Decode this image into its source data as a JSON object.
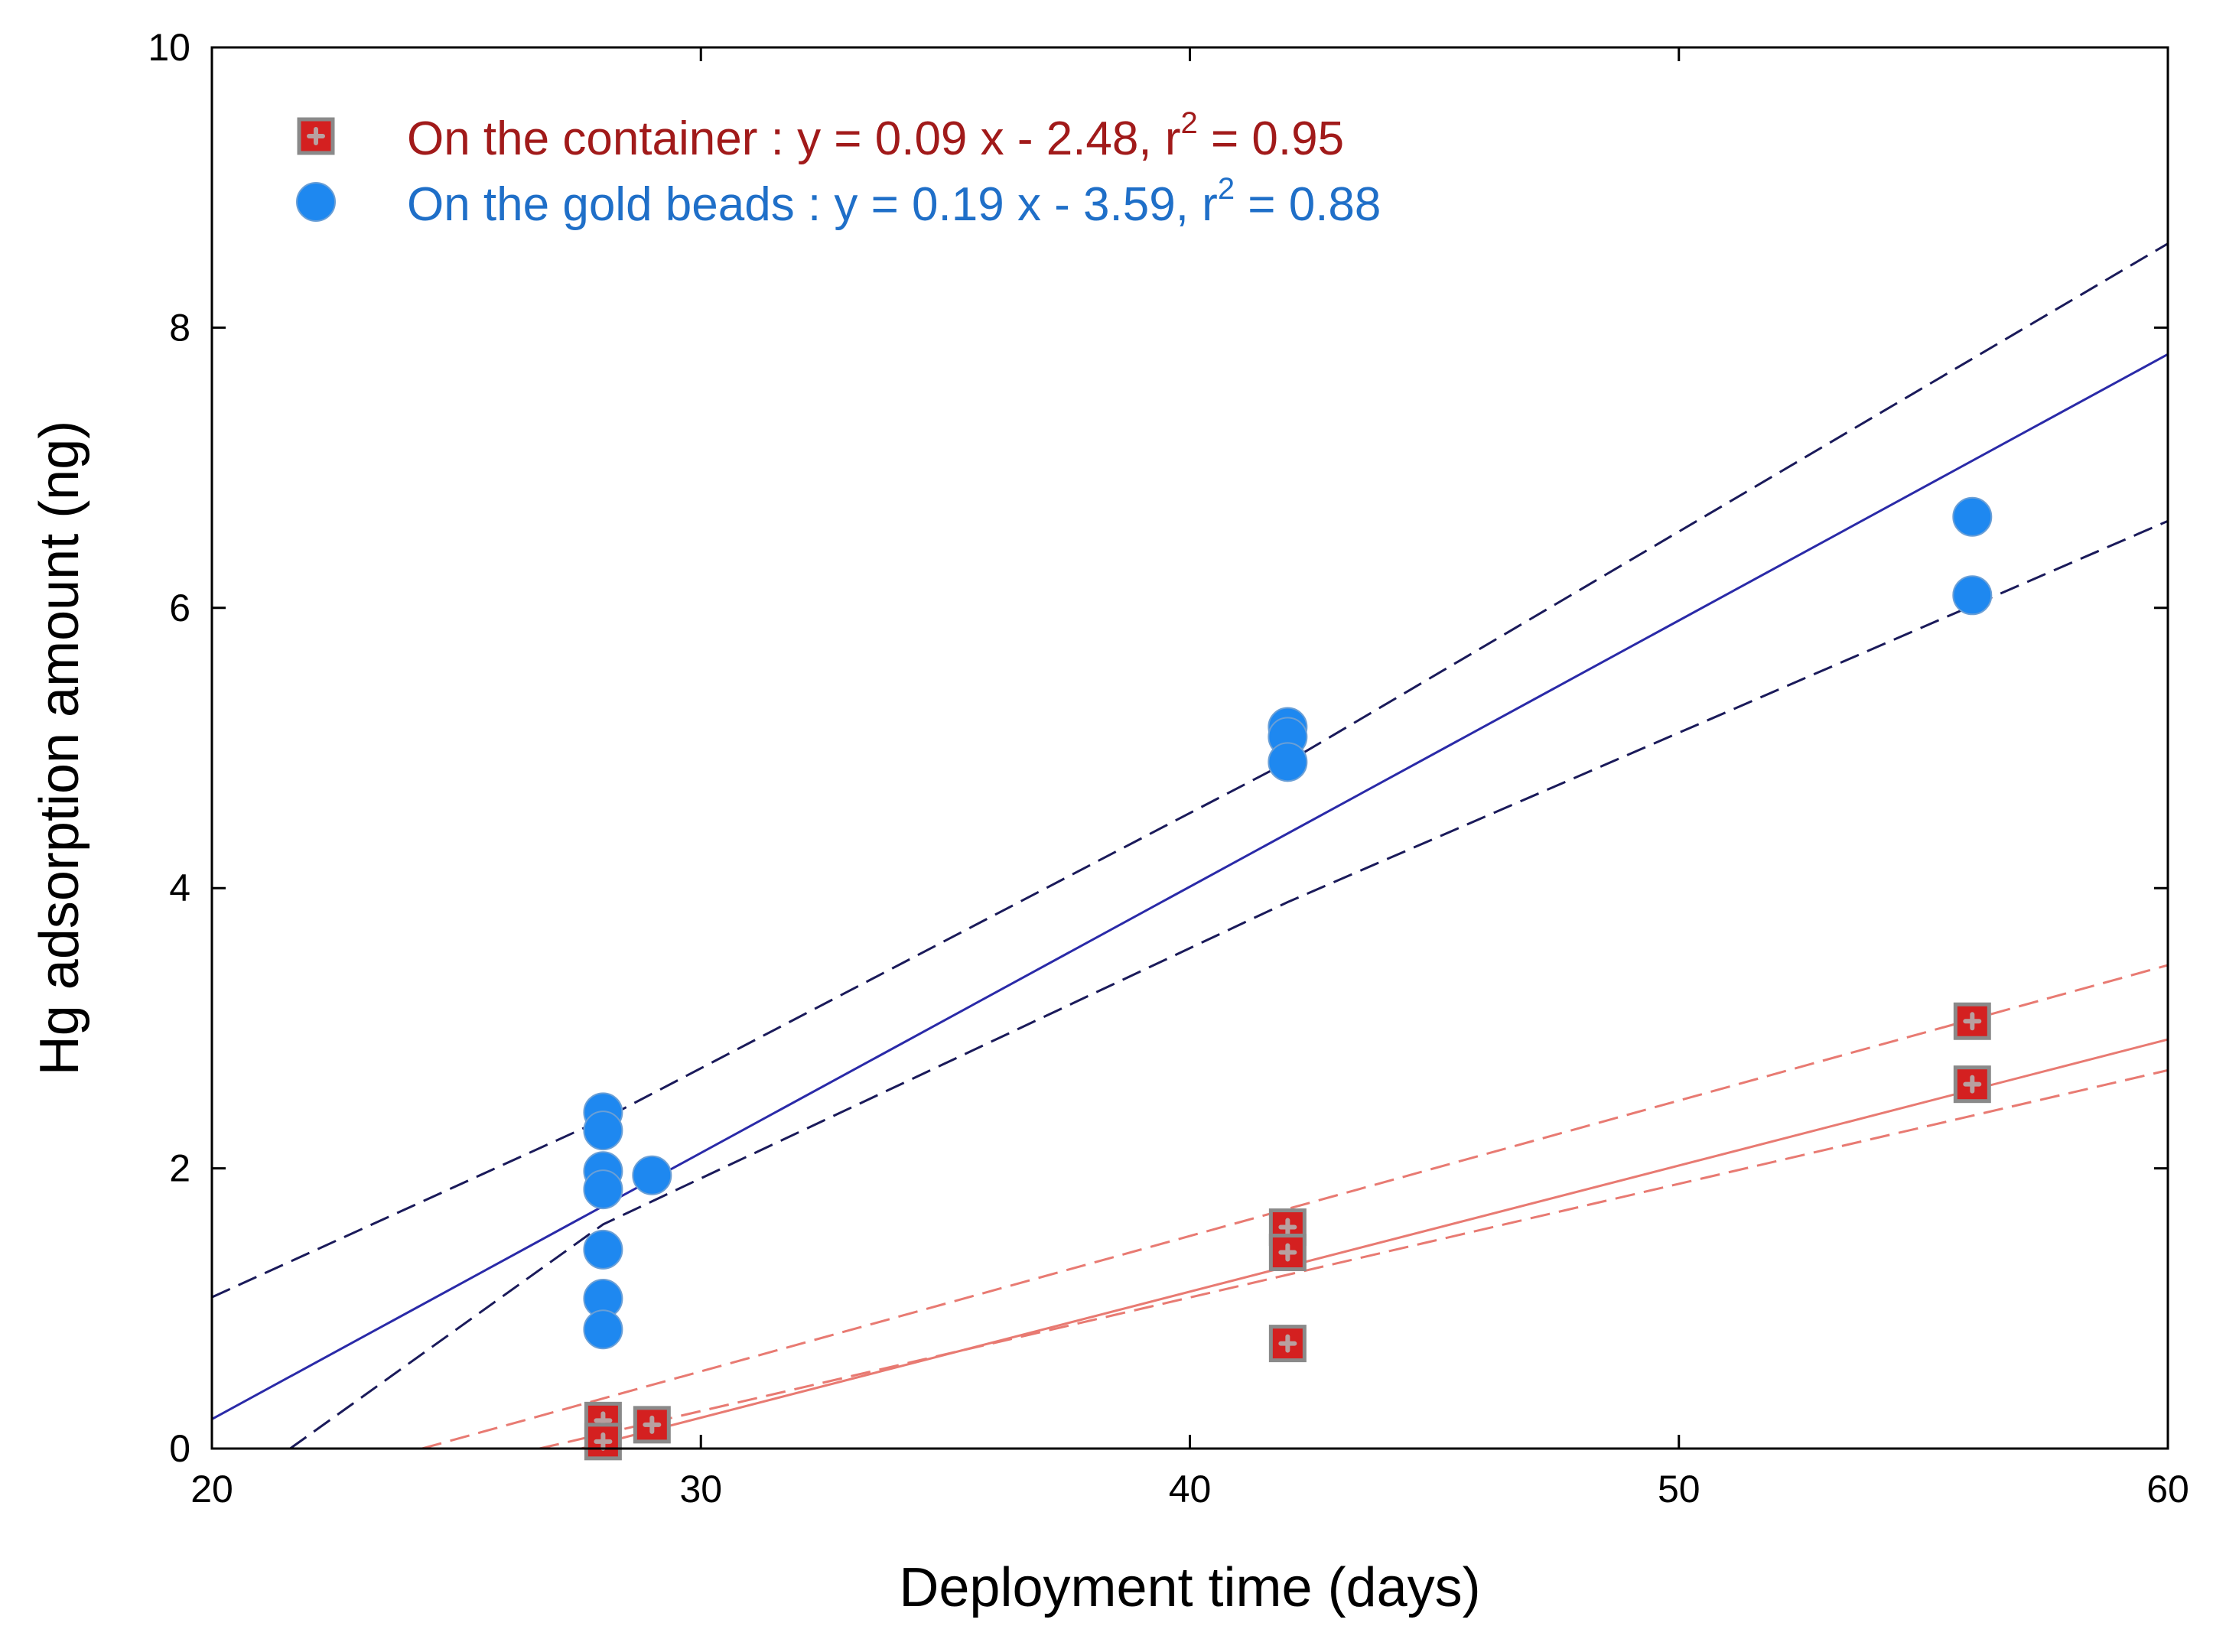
{
  "chart_data": {
    "type": "scatter",
    "title": "",
    "xlabel": "Deployment time (days)",
    "ylabel": "Hg adsorption amount (ng)",
    "xlim": [
      20,
      60
    ],
    "ylim": [
      0,
      10
    ],
    "xticks": [
      20,
      30,
      40,
      50,
      60
    ],
    "yticks": [
      0,
      2,
      4,
      6,
      8,
      10
    ],
    "xtick_labels": [
      "20",
      "30",
      "40",
      "50",
      "60"
    ],
    "ytick_labels": [
      "0",
      "2",
      "4",
      "6",
      "8",
      "10"
    ],
    "legend_position": "top-left",
    "series": [
      {
        "name": "On the container",
        "legend_label": "On the container : y = 0.09 x - 2.48, r",
        "legend_sup": "2",
        "legend_suffix": " = 0.95",
        "marker": "square",
        "color": "#d42020",
        "text_color": "#a11a1a",
        "line_color": "#e87a72",
        "fit": {
          "slope": 0.09,
          "intercept": -2.48,
          "r2": 0.95
        },
        "ci_upper": [
          [
            24.3,
            0.0
          ],
          [
            60,
            3.45
          ]
        ],
        "ci_lower": [
          [
            26.7,
            0.0
          ],
          [
            60,
            2.7
          ]
        ],
        "points": [
          [
            28,
            0.2
          ],
          [
            28,
            0.05
          ],
          [
            29,
            0.17
          ],
          [
            42,
            1.58
          ],
          [
            42,
            1.4
          ],
          [
            42,
            0.75
          ],
          [
            56,
            3.05
          ],
          [
            56,
            2.6
          ]
        ]
      },
      {
        "name": "On the gold beads",
        "legend_label": "On the gold beads : y = 0.19 x - 3.59, r",
        "legend_sup": "2",
        "legend_suffix": " = 0.88",
        "marker": "circle",
        "color": "#1e88f0",
        "text_color": "#1f6fc8",
        "line_color": "#2a2aa8",
        "ci_color": "#1a1a5a",
        "fit": {
          "slope": 0.19,
          "intercept": -3.59,
          "r2": 0.88
        },
        "ci_upper": [
          [
            20,
            1.08
          ],
          [
            28,
            2.35
          ],
          [
            42,
            4.9
          ],
          [
            60,
            8.6
          ]
        ],
        "ci_lower": [
          [
            21.6,
            0.0
          ],
          [
            28,
            1.6
          ],
          [
            42,
            3.9
          ],
          [
            60,
            6.62
          ]
        ],
        "points": [
          [
            28,
            2.4
          ],
          [
            28,
            2.27
          ],
          [
            28,
            1.98
          ],
          [
            28,
            1.85
          ],
          [
            28,
            1.42
          ],
          [
            28,
            1.07
          ],
          [
            28,
            0.85
          ],
          [
            29,
            1.95
          ],
          [
            42,
            5.15
          ],
          [
            42,
            5.08
          ],
          [
            42,
            4.9
          ],
          [
            56,
            6.65
          ],
          [
            56,
            6.09
          ]
        ]
      }
    ]
  }
}
